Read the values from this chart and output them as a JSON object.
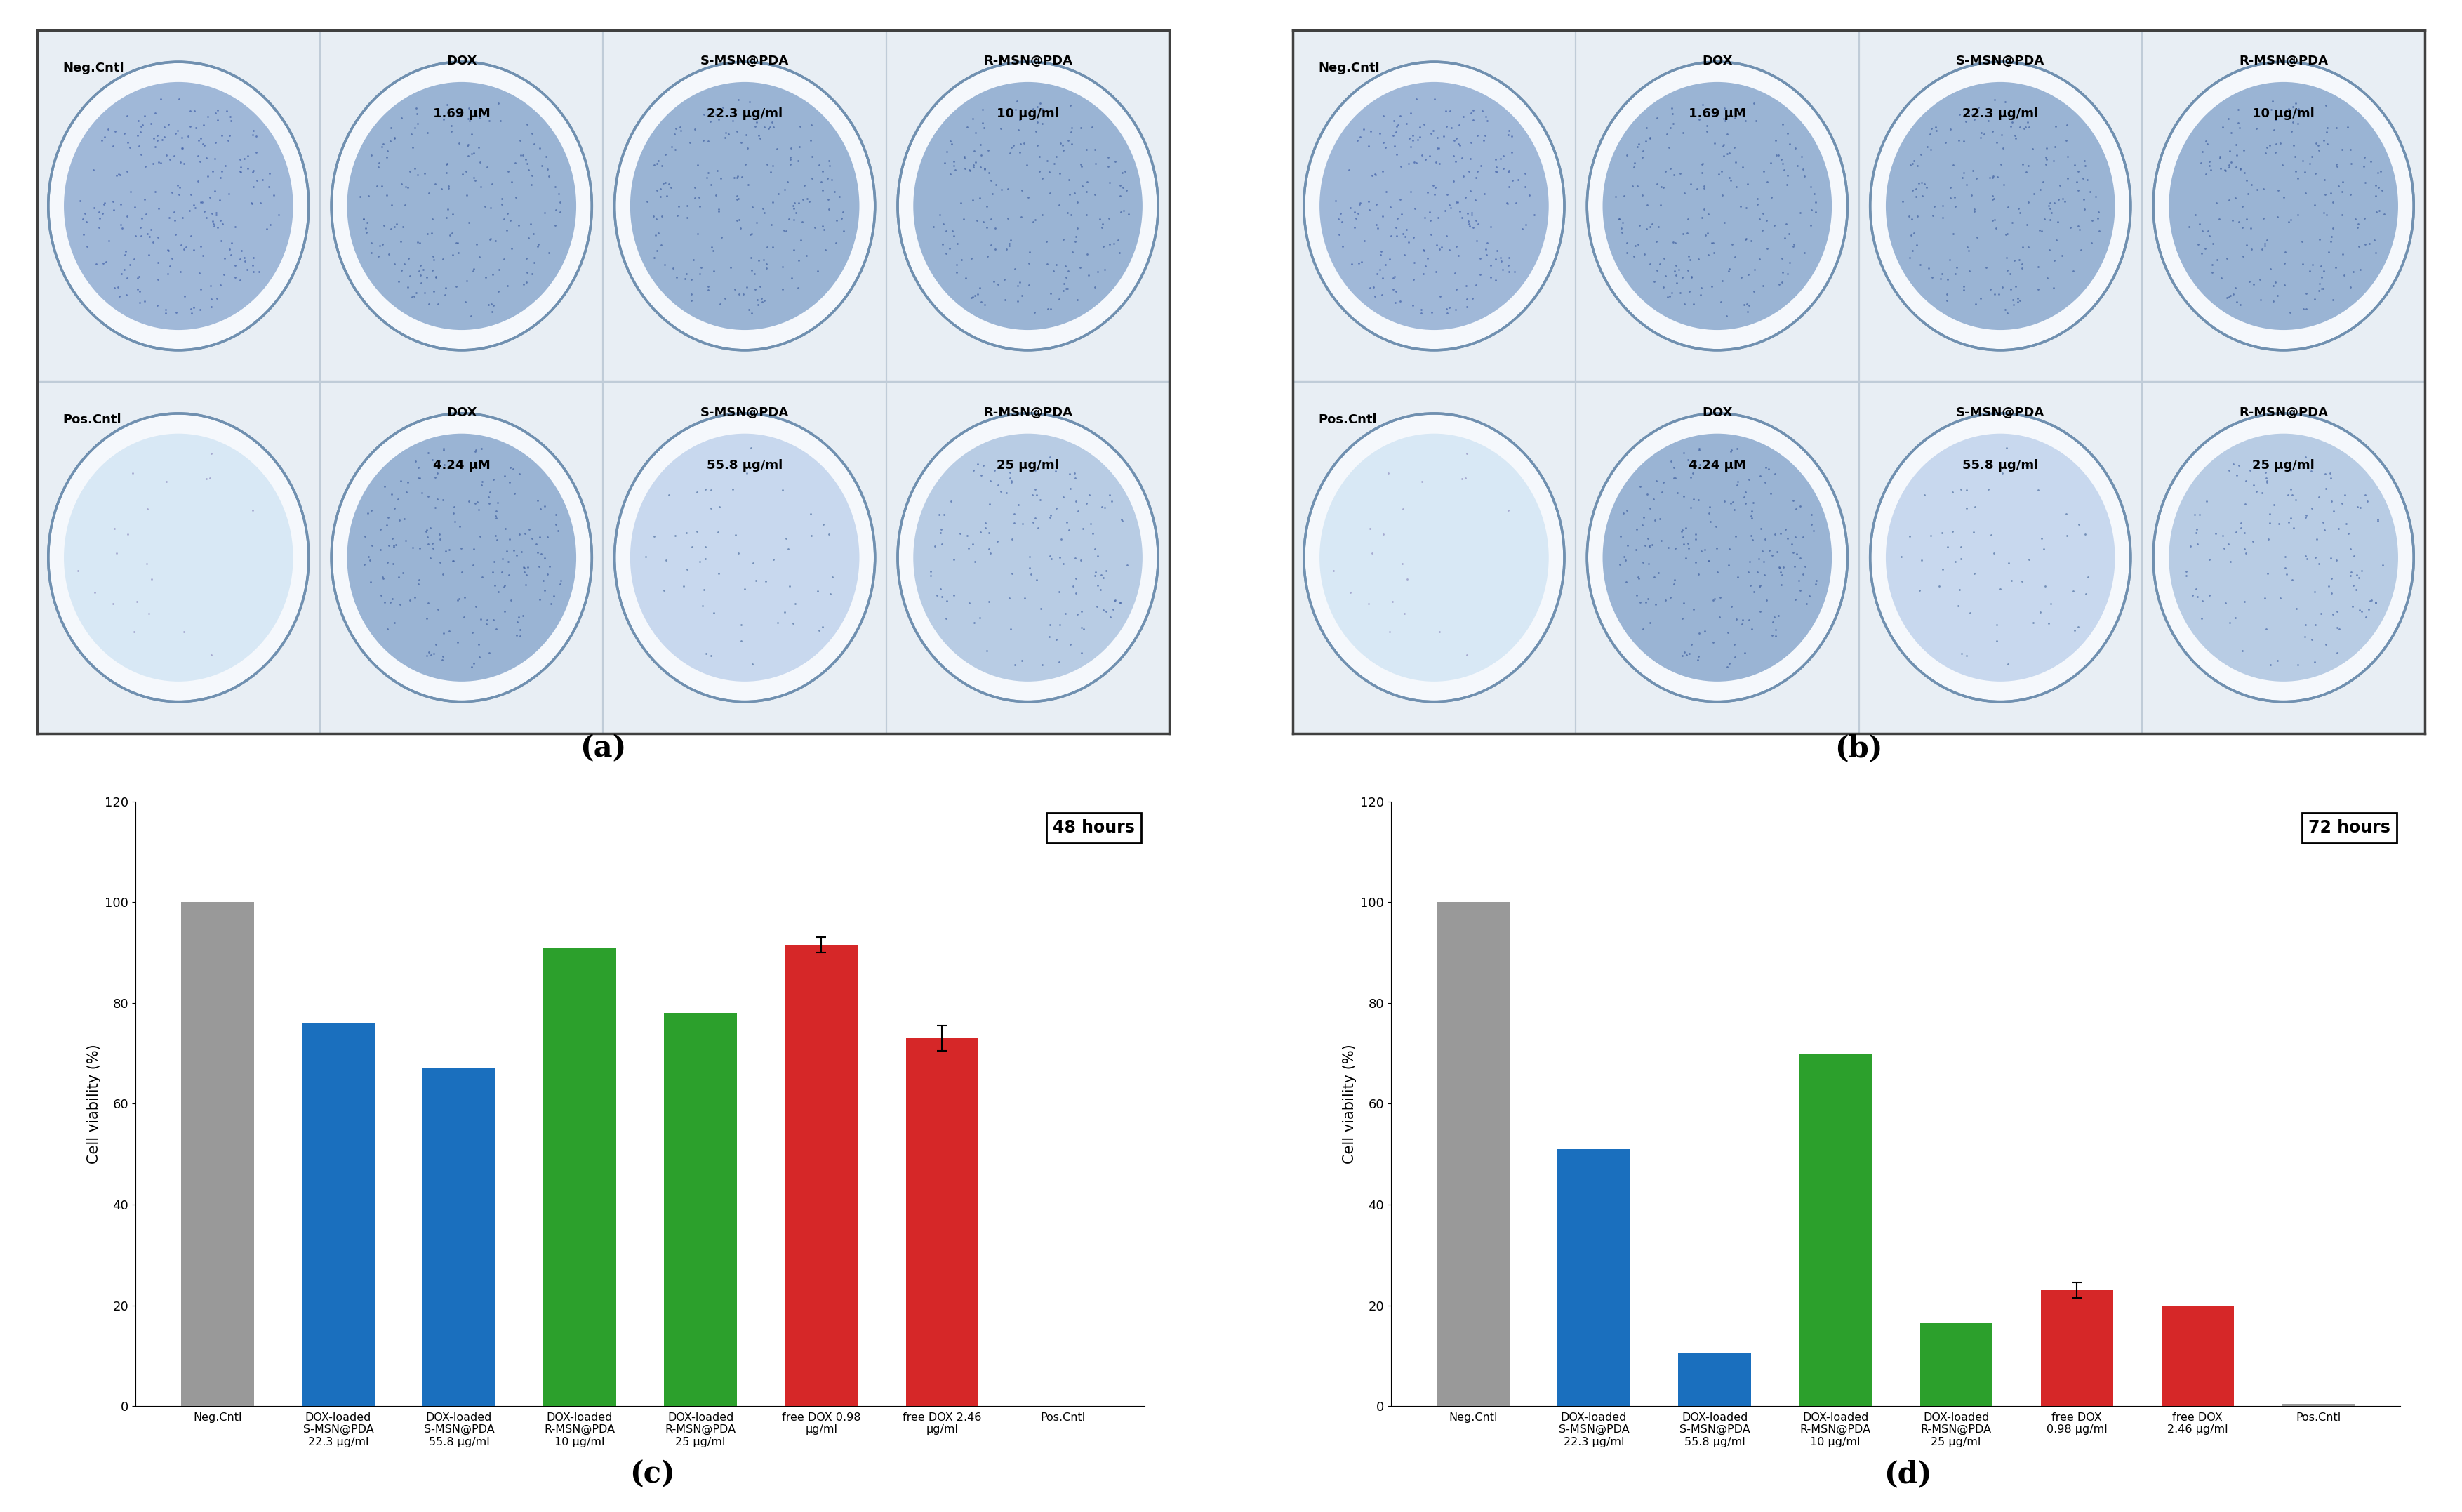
{
  "panel_c": {
    "title": "48 hours",
    "categories": [
      "Neg.Cntl",
      "DOX-loaded\nS-MSN@PDA\n22.3 μg/ml",
      "DOX-loaded\nS-MSN@PDA\n55.8 μg/ml",
      "DOX-loaded\nR-MSN@PDA\n10 μg/ml",
      "DOX-loaded\nR-MSN@PDA\n25 μg/ml",
      "free DOX 0.98\nμg/ml",
      "free DOX 2.46\nμg/ml",
      "Pos.Cntl"
    ],
    "values": [
      100,
      76,
      67,
      91,
      78,
      91.5,
      73,
      0
    ],
    "errors": [
      0,
      0,
      0,
      0,
      0,
      1.5,
      2.5,
      0
    ],
    "colors": [
      "#999999",
      "#1a6fbe",
      "#1a6fbe",
      "#2ca02c",
      "#2ca02c",
      "#d62728",
      "#d62728",
      "#999999"
    ],
    "ylabel": "Cell viability (%)",
    "ylim": [
      0,
      120
    ],
    "yticks": [
      0,
      20,
      40,
      60,
      80,
      100,
      120
    ]
  },
  "panel_d": {
    "title": "72 hours",
    "categories": [
      "Neg.Cntl",
      "DOX-loaded\nS-MSN@PDA\n22.3 μg/ml",
      "DOX-loaded\nS-MSN@PDA\n55.8 μg/ml",
      "DOX-loaded\nR-MSN@PDA\n10 μg/ml",
      "DOX-loaded\nR-MSN@PDA\n25 μg/ml",
      "free DOX\n0.98 μg/ml",
      "free DOX\n2.46 μg/ml",
      "Pos.Cntl"
    ],
    "values": [
      100,
      51,
      10.5,
      70,
      16.5,
      23,
      20,
      0.5
    ],
    "errors": [
      0,
      0,
      0,
      0,
      0,
      1.5,
      0,
      0
    ],
    "colors": [
      "#999999",
      "#1a6fbe",
      "#1a6fbe",
      "#2ca02c",
      "#2ca02c",
      "#d62728",
      "#d62728",
      "#999999"
    ],
    "ylabel": "Cell viability (%)",
    "ylim": [
      0,
      120
    ],
    "yticks": [
      0,
      20,
      40,
      60,
      80,
      100,
      120
    ]
  },
  "image_panels": {
    "rows": 2,
    "cols": 4,
    "row0_labels": [
      "Neg.Cntl",
      "DOX\n1.69 μM",
      "S-MSN@PDA\n22.3 μg/ml",
      "R-MSN@PDA\n10 μg/ml"
    ],
    "row1_labels": [
      "Pos.Cntl",
      "DOX\n4.24 μM",
      "S-MSN@PDA\n55.8 μg/ml",
      "R-MSN@PDA\n25 μg/ml"
    ],
    "bg_color": "#e8eef4",
    "well_bg": "#f5f8fc",
    "stain_color_dark": "#6888c8",
    "stain_color_medium": "#8aA8d8",
    "stain_color_light": "#d0ddf0",
    "pos_cntl_color": "#d8e8f5",
    "border_color": "#7090b0",
    "grid_color": "#c0ccd8"
  },
  "background_color": "#ffffff"
}
